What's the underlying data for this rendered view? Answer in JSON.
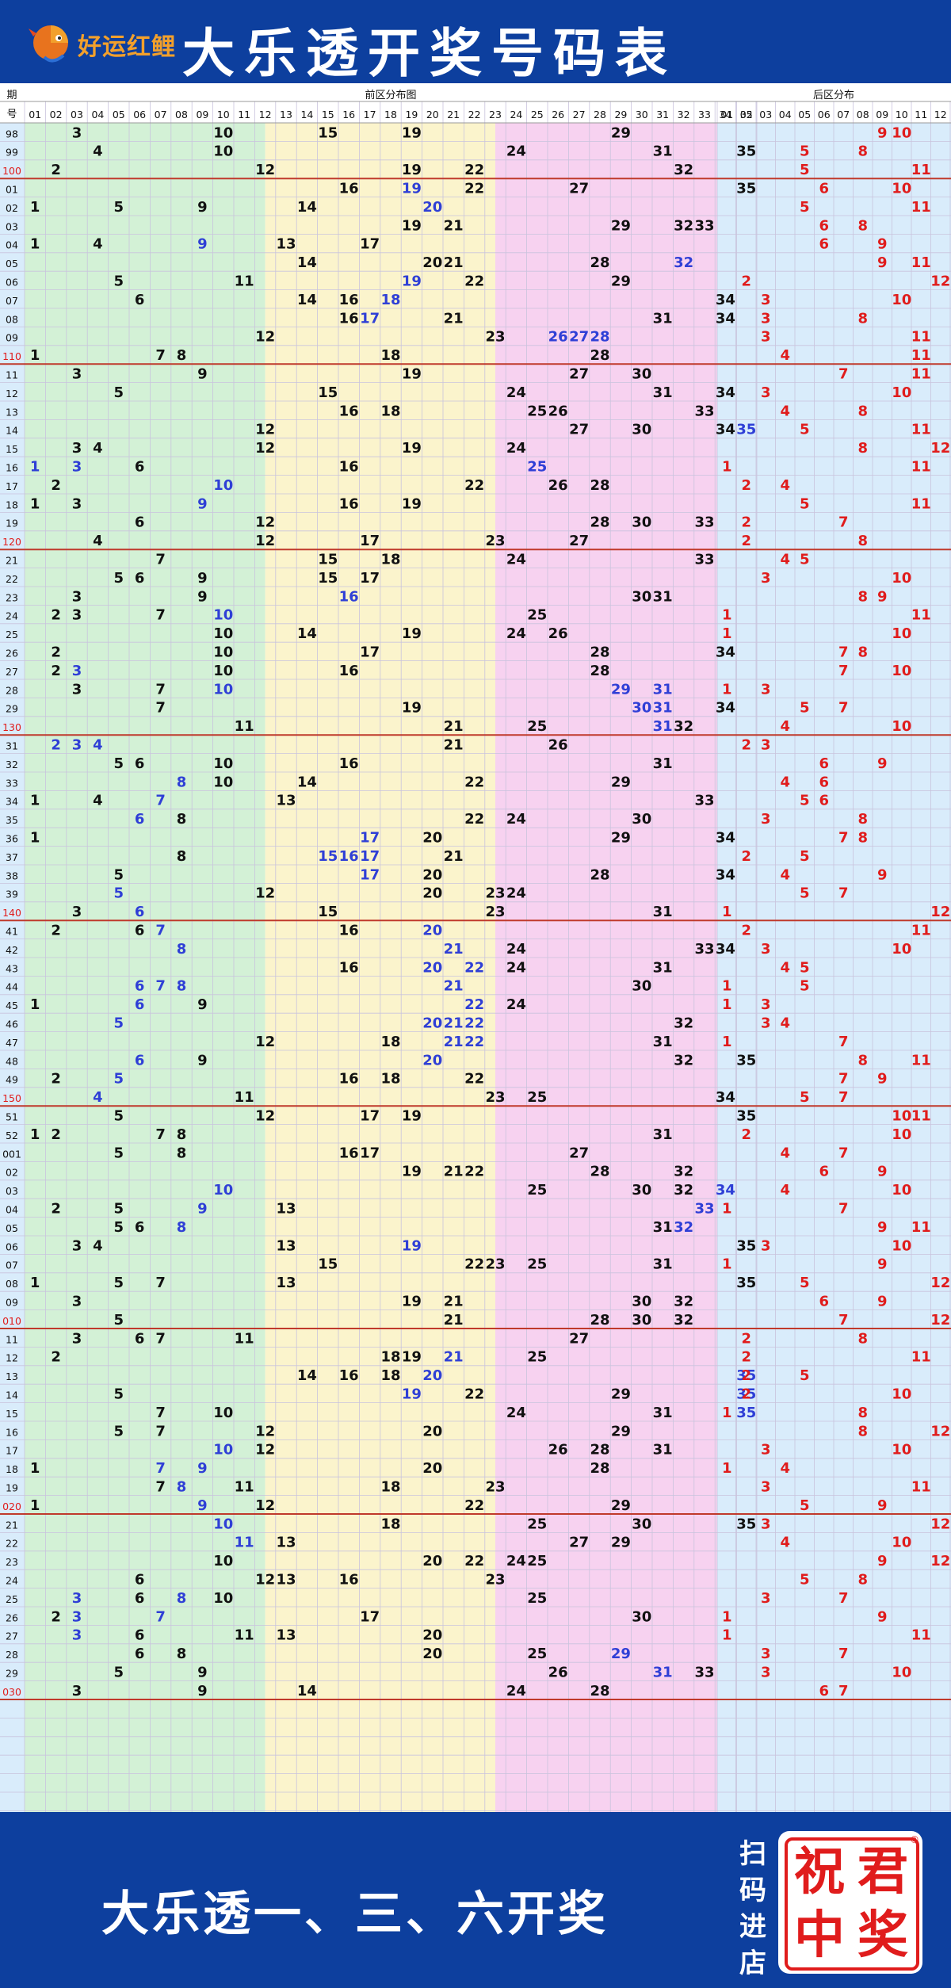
{
  "brand": {
    "logo_text": "好运红鲤"
  },
  "title": "大乐透开奖号码表",
  "header_labels": {
    "period": "期",
    "number": "号",
    "front": "前区分布图",
    "back": "后区分布"
  },
  "front_numbers": [
    "01",
    "02",
    "03",
    "04",
    "05",
    "06",
    "07",
    "08",
    "09",
    "10",
    "11",
    "12",
    "13",
    "14",
    "15",
    "16",
    "17",
    "18",
    "19",
    "20",
    "21",
    "22",
    "23",
    "24",
    "25",
    "26",
    "27",
    "28",
    "29",
    "30",
    "31",
    "32",
    "33",
    "34",
    "35"
  ],
  "back_numbers": [
    "01",
    "02",
    "03",
    "04",
    "05",
    "06",
    "07",
    "08",
    "09",
    "10",
    "11",
    "12"
  ],
  "colors": {
    "blue_bg": "#0d3f9e",
    "green": "#d3f1d6",
    "yellow": "#fbf4cc",
    "pink": "#f7d2f0",
    "light_blue": "#d9ecfb",
    "red": "#e01c1c",
    "num_blue": "#2f3fd6",
    "black": "#111111",
    "sep": "#c0392b"
  },
  "rows": [
    {
      "p": "98",
      "f": [
        3,
        10,
        15,
        19,
        29
      ],
      "b": [
        9,
        10
      ]
    },
    {
      "p": "99",
      "f": [
        4,
        10,
        24,
        31,
        35
      ],
      "b": [
        5,
        8
      ]
    },
    {
      "p": "100",
      "f": [
        2,
        12,
        19,
        22,
        32
      ],
      "b": [
        5,
        11
      ]
    },
    {
      "p": "01",
      "f": [
        16,
        19,
        22,
        27,
        35
      ],
      "b": [
        6,
        10
      ]
    },
    {
      "p": "02",
      "f": [
        1,
        5,
        9,
        14,
        20
      ],
      "b": [
        5,
        11
      ]
    },
    {
      "p": "03",
      "f": [
        19,
        21,
        29,
        32,
        33
      ],
      "b": [
        6,
        8
      ]
    },
    {
      "p": "04",
      "f": [
        1,
        4,
        9,
        13,
        17
      ],
      "b": [
        6,
        9
      ]
    },
    {
      "p": "05",
      "f": [
        14,
        20,
        21,
        28,
        32
      ],
      "b": [
        9,
        11
      ]
    },
    {
      "p": "06",
      "f": [
        5,
        11,
        19,
        22,
        29
      ],
      "b": [
        2,
        12
      ]
    },
    {
      "p": "07",
      "f": [
        6,
        14,
        16,
        18,
        34
      ],
      "b": [
        3,
        10
      ]
    },
    {
      "p": "08",
      "f": [
        16,
        17,
        21,
        31,
        34
      ],
      "b": [
        3,
        8
      ]
    },
    {
      "p": "09",
      "f": [
        12,
        23,
        26,
        27,
        28
      ],
      "b": [
        3,
        11
      ]
    },
    {
      "p": "110",
      "f": [
        1,
        7,
        8,
        18,
        28
      ],
      "b": [
        4,
        11
      ]
    },
    {
      "p": "11",
      "f": [
        3,
        9,
        19,
        27,
        30
      ],
      "b": [
        7,
        11
      ]
    },
    {
      "p": "12",
      "f": [
        5,
        15,
        24,
        31,
        34
      ],
      "b": [
        3,
        10
      ]
    },
    {
      "p": "13",
      "f": [
        16,
        18,
        25,
        26,
        33
      ],
      "b": [
        4,
        8
      ]
    },
    {
      "p": "14",
      "f": [
        12,
        27,
        30,
        34,
        35
      ],
      "b": [
        5,
        11
      ]
    },
    {
      "p": "15",
      "f": [
        3,
        4,
        12,
        19,
        24
      ],
      "b": [
        8,
        12
      ]
    },
    {
      "p": "16",
      "f": [
        1,
        3,
        6,
        16,
        25
      ],
      "b": [
        1,
        11
      ]
    },
    {
      "p": "17",
      "f": [
        2,
        10,
        22,
        26,
        28
      ],
      "b": [
        2,
        4
      ]
    },
    {
      "p": "18",
      "f": [
        1,
        3,
        9,
        16,
        19
      ],
      "b": [
        5,
        11
      ]
    },
    {
      "p": "19",
      "f": [
        6,
        12,
        28,
        30,
        33
      ],
      "b": [
        2,
        7
      ]
    },
    {
      "p": "120",
      "f": [
        4,
        12,
        17,
        23,
        27
      ],
      "b": [
        2,
        8
      ]
    },
    {
      "p": "21",
      "f": [
        7,
        15,
        18,
        24,
        33
      ],
      "b": [
        4,
        5
      ]
    },
    {
      "p": "22",
      "f": [
        5,
        6,
        9,
        15,
        17
      ],
      "b": [
        3,
        10
      ]
    },
    {
      "p": "23",
      "f": [
        3,
        9,
        16,
        30,
        31
      ],
      "b": [
        8,
        9
      ]
    },
    {
      "p": "24",
      "f": [
        2,
        3,
        7,
        10,
        25
      ],
      "b": [
        1,
        11
      ]
    },
    {
      "p": "25",
      "f": [
        10,
        14,
        19,
        24,
        26
      ],
      "b": [
        1,
        10
      ]
    },
    {
      "p": "26",
      "f": [
        2,
        10,
        17,
        28,
        34
      ],
      "b": [
        7,
        8
      ]
    },
    {
      "p": "27",
      "f": [
        2,
        3,
        10,
        16,
        28
      ],
      "b": [
        7,
        10
      ]
    },
    {
      "p": "28",
      "f": [
        3,
        7,
        10,
        29,
        31
      ],
      "b": [
        1,
        3
      ]
    },
    {
      "p": "29",
      "f": [
        7,
        19,
        30,
        31,
        34
      ],
      "b": [
        5,
        7
      ]
    },
    {
      "p": "130",
      "f": [
        11,
        21,
        25,
        31,
        32
      ],
      "b": [
        4,
        10
      ]
    },
    {
      "p": "31",
      "f": [
        2,
        3,
        4,
        21,
        26
      ],
      "b": [
        2,
        3
      ]
    },
    {
      "p": "32",
      "f": [
        5,
        6,
        10,
        16,
        31
      ],
      "b": [
        6,
        9
      ]
    },
    {
      "p": "33",
      "f": [
        8,
        10,
        14,
        22,
        29
      ],
      "b": [
        4,
        6
      ]
    },
    {
      "p": "34",
      "f": [
        1,
        4,
        7,
        13,
        33
      ],
      "b": [
        5,
        6
      ]
    },
    {
      "p": "35",
      "f": [
        6,
        8,
        22,
        24,
        30
      ],
      "b": [
        3,
        8
      ]
    },
    {
      "p": "36",
      "f": [
        1,
        17,
        20,
        29,
        34
      ],
      "b": [
        7,
        8
      ]
    },
    {
      "p": "37",
      "f": [
        8,
        15,
        16,
        17,
        21
      ],
      "b": [
        2,
        5
      ]
    },
    {
      "p": "38",
      "f": [
        5,
        17,
        20,
        28,
        34
      ],
      "b": [
        4,
        9
      ]
    },
    {
      "p": "39",
      "f": [
        5,
        12,
        20,
        23,
        24
      ],
      "b": [
        5,
        7
      ]
    },
    {
      "p": "140",
      "f": [
        3,
        6,
        15,
        23,
        31
      ],
      "b": [
        1,
        12
      ]
    },
    {
      "p": "41",
      "f": [
        2,
        6,
        7,
        16,
        20
      ],
      "b": [
        2,
        11
      ]
    },
    {
      "p": "42",
      "f": [
        8,
        21,
        24,
        33,
        34
      ],
      "b": [
        3,
        10
      ]
    },
    {
      "p": "43",
      "f": [
        16,
        20,
        22,
        24,
        31
      ],
      "b": [
        4,
        5
      ]
    },
    {
      "p": "44",
      "f": [
        6,
        7,
        8,
        21,
        30
      ],
      "b": [
        1,
        5
      ]
    },
    {
      "p": "45",
      "f": [
        1,
        6,
        9,
        22,
        24
      ],
      "b": [
        1,
        3
      ]
    },
    {
      "p": "46",
      "f": [
        5,
        20,
        21,
        22,
        32
      ],
      "b": [
        3,
        4
      ]
    },
    {
      "p": "47",
      "f": [
        12,
        18,
        21,
        22,
        31
      ],
      "b": [
        1,
        7
      ]
    },
    {
      "p": "48",
      "f": [
        6,
        9,
        20,
        32,
        35
      ],
      "b": [
        8,
        11
      ]
    },
    {
      "p": "49",
      "f": [
        2,
        5,
        16,
        18,
        22
      ],
      "b": [
        7,
        9
      ]
    },
    {
      "p": "150",
      "f": [
        4,
        11,
        23,
        25,
        34
      ],
      "b": [
        5,
        7
      ]
    },
    {
      "p": "51",
      "f": [
        5,
        12,
        17,
        19,
        35
      ],
      "b": [
        10,
        11
      ]
    },
    {
      "p": "52",
      "f": [
        1,
        2,
        7,
        8,
        31
      ],
      "b": [
        2,
        10
      ]
    },
    {
      "p": "001",
      "f": [
        5,
        8,
        16,
        17,
        27
      ],
      "b": [
        4,
        7
      ]
    },
    {
      "p": "02",
      "f": [
        19,
        21,
        22,
        28,
        32
      ],
      "b": [
        6,
        9
      ]
    },
    {
      "p": "03",
      "f": [
        10,
        25,
        30,
        32,
        34
      ],
      "b": [
        4,
        10
      ]
    },
    {
      "p": "04",
      "f": [
        2,
        5,
        9,
        13,
        33
      ],
      "b": [
        1,
        7
      ]
    },
    {
      "p": "05",
      "f": [
        5,
        6,
        8,
        31,
        32
      ],
      "b": [
        9,
        11
      ]
    },
    {
      "p": "06",
      "f": [
        3,
        4,
        13,
        19,
        35
      ],
      "b": [
        3,
        10
      ]
    },
    {
      "p": "07",
      "f": [
        15,
        22,
        23,
        25,
        31
      ],
      "b": [
        1,
        9
      ]
    },
    {
      "p": "08",
      "f": [
        1,
        5,
        7,
        13,
        35
      ],
      "b": [
        5,
        12
      ]
    },
    {
      "p": "09",
      "f": [
        3,
        19,
        21,
        30,
        32
      ],
      "b": [
        6,
        9
      ]
    },
    {
      "p": "010",
      "f": [
        5,
        21,
        28,
        30,
        32
      ],
      "b": [
        7,
        12
      ]
    },
    {
      "p": "11",
      "f": [
        3,
        6,
        7,
        11,
        27
      ],
      "b": [
        2,
        8
      ]
    },
    {
      "p": "12",
      "f": [
        2,
        18,
        19,
        21,
        25
      ],
      "b": [
        2,
        11
      ]
    },
    {
      "p": "13",
      "f": [
        14,
        16,
        18,
        20,
        35
      ],
      "b": [
        2,
        5
      ]
    },
    {
      "p": "14",
      "f": [
        5,
        19,
        22,
        29,
        35
      ],
      "b": [
        2,
        10
      ]
    },
    {
      "p": "15",
      "f": [
        7,
        10,
        24,
        31,
        35
      ],
      "b": [
        1,
        8
      ]
    },
    {
      "p": "16",
      "f": [
        5,
        7,
        12,
        20,
        29
      ],
      "b": [
        8,
        12
      ]
    },
    {
      "p": "17",
      "f": [
        10,
        12,
        26,
        28,
        31
      ],
      "b": [
        3,
        10
      ]
    },
    {
      "p": "18",
      "f": [
        1,
        7,
        9,
        20,
        28
      ],
      "b": [
        1,
        4
      ]
    },
    {
      "p": "19",
      "f": [
        7,
        8,
        11,
        18,
        23
      ],
      "b": [
        3,
        11
      ]
    },
    {
      "p": "020",
      "f": [
        1,
        9,
        12,
        22,
        29
      ],
      "b": [
        5,
        9
      ]
    },
    {
      "p": "21",
      "f": [
        10,
        18,
        25,
        30,
        35
      ],
      "b": [
        3,
        12
      ]
    },
    {
      "p": "22",
      "f": [
        11,
        13,
        27,
        29
      ],
      "b": [
        4,
        10
      ]
    },
    {
      "p": "23",
      "f": [
        10,
        20,
        22,
        24,
        25
      ],
      "b": [
        9,
        12
      ]
    },
    {
      "p": "24",
      "f": [
        6,
        12,
        13,
        16,
        23
      ],
      "b": [
        5,
        8
      ]
    },
    {
      "p": "25",
      "f": [
        3,
        6,
        8,
        10,
        25
      ],
      "b": [
        3,
        7
      ]
    },
    {
      "p": "26",
      "f": [
        2,
        3,
        7,
        17,
        30
      ],
      "b": [
        1,
        9
      ]
    },
    {
      "p": "27",
      "f": [
        3,
        6,
        11,
        13,
        20
      ],
      "b": [
        1,
        11
      ]
    },
    {
      "p": "28",
      "f": [
        6,
        8,
        20,
        25,
        29
      ],
      "b": [
        3,
        7
      ]
    },
    {
      "p": "29",
      "f": [
        5,
        9,
        26,
        31,
        33
      ],
      "b": [
        3,
        10
      ]
    },
    {
      "p": "030",
      "f": [
        3,
        9,
        14,
        24,
        28
      ],
      "b": [
        6,
        7
      ]
    }
  ],
  "blue_marks": {
    "99": [],
    "01": [
      19
    ],
    "02": [
      20
    ],
    "03": [
      10,
      34
    ],
    "05": [
      8,
      32
    ],
    "06": [
      19
    ],
    "07": [
      18
    ],
    "08": [
      17
    ],
    "09": [
      26,
      27,
      28
    ],
    "15": [
      35
    ],
    "16": [
      1,
      3,
      25
    ],
    "17": [
      10
    ],
    "18": [
      7,
      9
    ],
    "21": [
      10
    ],
    "22": [
      11
    ],
    "23": [
      16
    ],
    "24": [
      10
    ],
    "25": [
      3,
      8
    ],
    "26": [
      3,
      7
    ],
    "27": [
      3
    ],
    "28": [
      10,
      29,
      31
    ],
    "29": [
      30,
      31
    ],
    "130": [
      31
    ],
    "31": [
      2,
      3,
      4
    ],
    "33": [
      8
    ],
    "34": [
      7
    ],
    "35": [
      6
    ],
    "36": [
      17
    ],
    "37": [
      15,
      16,
      17
    ],
    "38": [
      17
    ],
    "39": [
      5
    ],
    "140": [
      6
    ],
    "41": [
      7,
      20
    ],
    "42": [
      8,
      21
    ],
    "43": [
      20,
      22
    ],
    "44": [
      6,
      7,
      8,
      21
    ],
    "45": [
      6,
      22
    ],
    "46": [
      5,
      20,
      21,
      22
    ],
    "47": [
      21,
      22
    ],
    "48": [
      6,
      20
    ],
    "49": [
      5
    ],
    "150": [
      4
    ],
    "04": [
      9,
      33
    ],
    "12": [
      21
    ],
    "13": [
      20,
      35
    ],
    "14": [
      19,
      35
    ],
    "19": [
      8
    ],
    "020": [
      9
    ]
  },
  "footer": {
    "slogan": "大乐透一、三、六开奖",
    "scan_text": [
      "扫",
      "码",
      "进",
      "店"
    ],
    "stamp_chars": [
      "祝",
      "君",
      "中",
      "奖"
    ]
  }
}
